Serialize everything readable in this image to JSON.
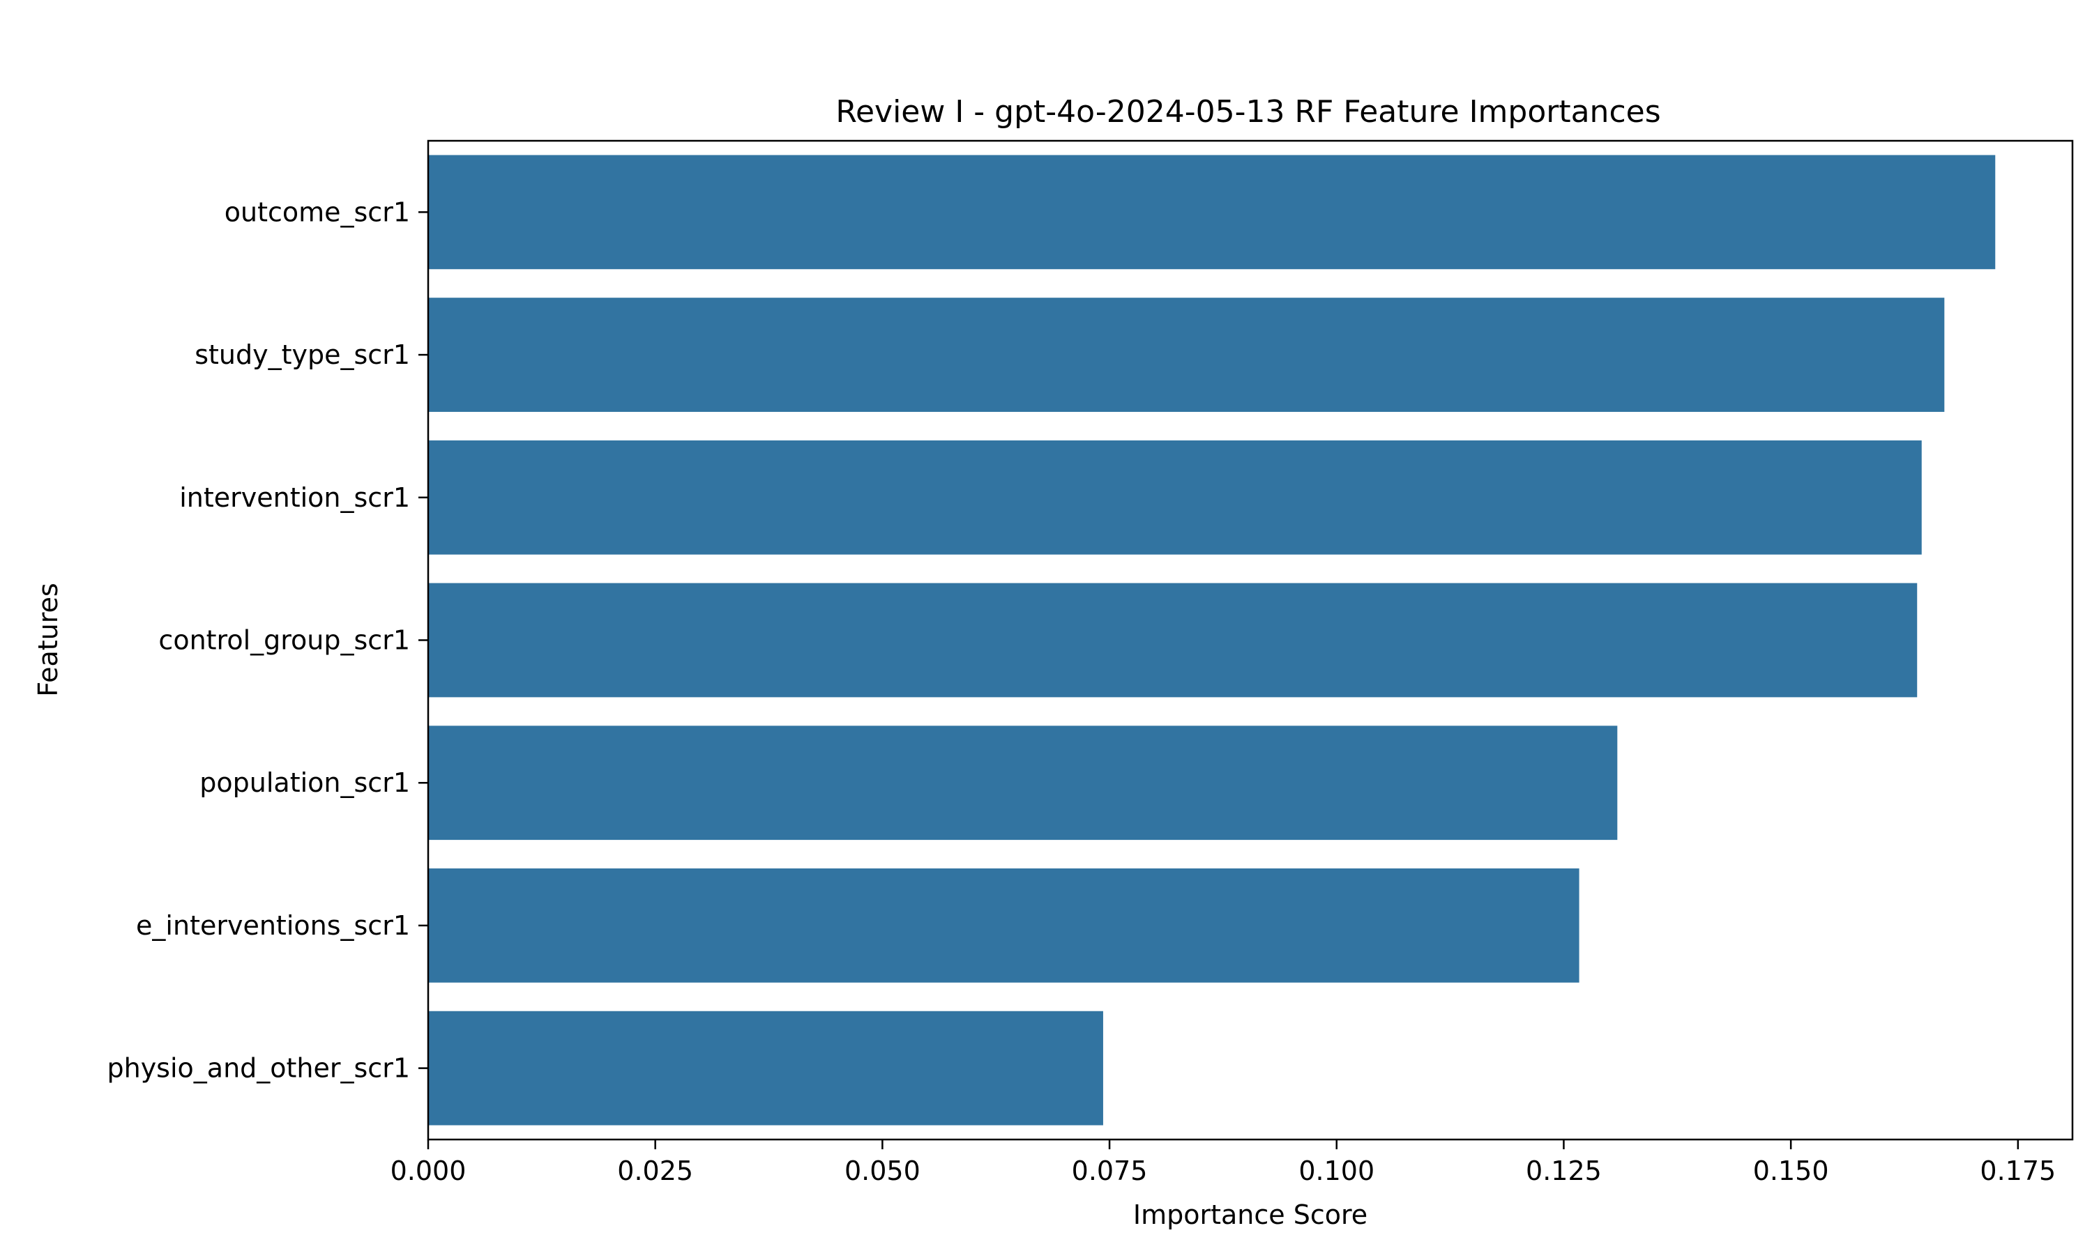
{
  "chart_data": {
    "type": "bar",
    "orientation": "horizontal",
    "title": "Review I - gpt-4o-2024-05-13 RF Feature Importances",
    "xlabel": "Importance Score",
    "ylabel": "Features",
    "categories": [
      "outcome_scr1",
      "study_type_scr1",
      "intervention_scr1",
      "control_group_scr1",
      "population_scr1",
      "e_interventions_scr1",
      "physio_and_other_scr1"
    ],
    "values": [
      0.1725,
      0.1669,
      0.1644,
      0.1639,
      0.1309,
      0.1267,
      0.0743
    ],
    "xlim": [
      0,
      0.181
    ],
    "xticks": [
      0.0,
      0.025,
      0.05,
      0.075,
      0.1,
      0.125,
      0.15,
      0.175
    ],
    "xtick_labels": [
      "0.000",
      "0.025",
      "0.050",
      "0.075",
      "0.100",
      "0.125",
      "0.150",
      "0.175"
    ],
    "grid": false,
    "legend": "none",
    "bar_color": "#3274a1"
  }
}
